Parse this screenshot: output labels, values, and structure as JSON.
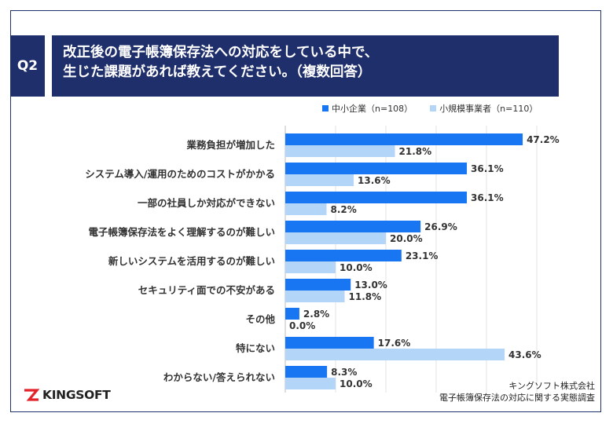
{
  "question_label": "Q2",
  "title_lines": [
    "改正後の電子帳簿保存法への対応をしている中で、",
    "生じた課題があれば教えてください。（複数回答）"
  ],
  "colors": {
    "series1": "#1976f2",
    "series2": "#b3d5f7",
    "navy": "#1f2f6b",
    "logo_red": "#e3222a"
  },
  "footer": {
    "company": "キングソフト株式会社",
    "survey": "電子帳簿保存法の対応に関する実態調査"
  },
  "logo_text": "KINGSOFT",
  "chart_data": {
    "type": "bar",
    "orientation": "horizontal",
    "categories": [
      "業務負担が増加した",
      "システム導入/運用のためのコストがかかる",
      "一部の社員しか対応ができない",
      "電子帳簿保存法をよく理解するのが難しい",
      "新しいシステムを活用するのが難しい",
      "セキュリティ面での不安がある",
      "その他",
      "特にない",
      "わからない/答えられない"
    ],
    "series": [
      {
        "name": "中小企業（n=108）",
        "values": [
          47.2,
          36.1,
          36.1,
          26.9,
          23.1,
          13.0,
          2.8,
          17.6,
          8.3
        ],
        "labels": [
          "47.2%",
          "36.1%",
          "36.1%",
          "26.9%",
          "23.1%",
          "13.0%",
          "2.8%",
          "17.6%",
          "8.3%"
        ]
      },
      {
        "name": "小規模事業者（n=110）",
        "values": [
          21.8,
          13.6,
          8.2,
          20.0,
          10.0,
          11.8,
          0.0,
          43.6,
          10.0
        ],
        "labels": [
          "21.8%",
          "13.6%",
          "8.2%",
          "20.0%",
          "10.0%",
          "11.8%",
          "0.0%",
          "43.6%",
          "10.0%"
        ]
      }
    ],
    "xlim": [
      0,
      50
    ],
    "grid": true,
    "legend_position": "top-right"
  }
}
